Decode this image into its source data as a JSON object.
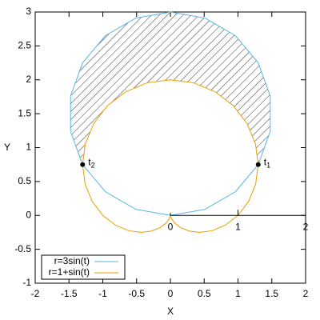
{
  "chart_data": {
    "type": "polar-line",
    "xlabel": "X",
    "ylabel": "Y",
    "xlim": [
      -2,
      2
    ],
    "ylim": [
      -1,
      3
    ],
    "xticks": [
      -2,
      -1.5,
      -1,
      -0.5,
      0,
      0.5,
      1,
      1.5,
      2
    ],
    "yticks": [
      -1,
      -0.5,
      0,
      0.5,
      1,
      1.5,
      2,
      2.5,
      3
    ],
    "rticks": [
      0,
      1,
      2
    ],
    "grid": false,
    "legend": "bottom-left",
    "hatch_between": [
      0,
      1
    ],
    "series": [
      {
        "name": "r=3sin(t)",
        "color": "#56b4e9",
        "x": [
          0,
          0.513,
          0.964,
          1.299,
          1.477,
          1.477,
          1.299,
          0.964,
          0.513,
          0,
          -0.513,
          -0.964,
          -1.299,
          -1.477,
          -1.477,
          -1.299,
          -0.964,
          -0.513,
          0
        ],
        "y": [
          0,
          0.09,
          0.351,
          0.75,
          1.24,
          1.76,
          2.25,
          2.649,
          2.91,
          3,
          2.91,
          2.649,
          2.25,
          1.76,
          1.24,
          0.75,
          0.351,
          0.09,
          0
        ]
      },
      {
        "name": "r=1+sin(t)",
        "color": "#e69f00",
        "x": [
          1,
          1.156,
          1.261,
          1.299,
          1.258,
          1.135,
          0.933,
          0.663,
          0.345,
          0,
          -0.345,
          -0.663,
          -0.933,
          -1.135,
          -1.258,
          -1.299,
          -1.261,
          -1.156,
          -1,
          -0.814,
          -0.618,
          -0.433,
          -0.274,
          -0.15,
          -0.067,
          -0.021,
          -0.003,
          0,
          0.003,
          0.021,
          0.067,
          0.15,
          0.274,
          0.433,
          0.618,
          0.814,
          1
        ],
        "y": [
          0,
          0.204,
          0.459,
          0.75,
          1.056,
          1.353,
          1.616,
          1.823,
          1.955,
          2,
          1.955,
          1.823,
          1.616,
          1.353,
          1.056,
          0.75,
          0.459,
          0.204,
          0,
          -0.143,
          -0.225,
          -0.25,
          -0.23,
          -0.179,
          -0.116,
          -0.057,
          -0.015,
          0,
          -0.015,
          -0.057,
          -0.116,
          -0.179,
          -0.23,
          -0.25,
          -0.225,
          -0.143,
          0
        ]
      }
    ],
    "annotations": [
      {
        "label": "t",
        "sub": "1",
        "x": 1.299,
        "y": 0.75
      },
      {
        "label": "t",
        "sub": "2",
        "x": -1.299,
        "y": 0.75
      }
    ]
  }
}
